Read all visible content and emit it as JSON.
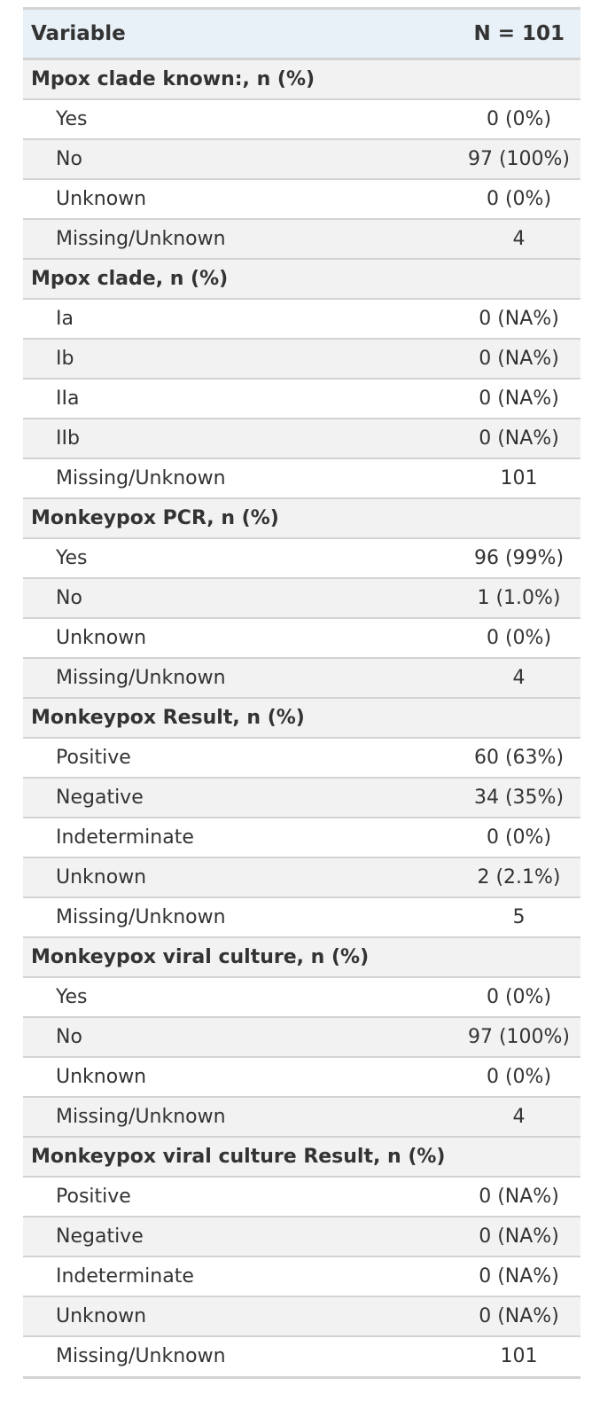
{
  "table": {
    "header": {
      "variable": "Variable",
      "n": "N = 101"
    },
    "groups": [
      {
        "label": "Mpox clade known:, n (%)",
        "rows": [
          {
            "label": "Yes",
            "value": "0 (0%)"
          },
          {
            "label": "No",
            "value": "97 (100%)"
          },
          {
            "label": "Unknown",
            "value": "0 (0%)"
          },
          {
            "label": "Missing/Unknown",
            "value": "4"
          }
        ]
      },
      {
        "label": "Mpox clade, n (%)",
        "rows": [
          {
            "label": "Ia",
            "value": "0 (NA%)"
          },
          {
            "label": "Ib",
            "value": "0 (NA%)"
          },
          {
            "label": "IIa",
            "value": "0 (NA%)"
          },
          {
            "label": "IIb",
            "value": "0 (NA%)"
          },
          {
            "label": "Missing/Unknown",
            "value": "101"
          }
        ]
      },
      {
        "label": "Monkeypox PCR, n (%)",
        "rows": [
          {
            "label": "Yes",
            "value": "96 (99%)"
          },
          {
            "label": "No",
            "value": "1 (1.0%)"
          },
          {
            "label": "Unknown",
            "value": "0 (0%)"
          },
          {
            "label": "Missing/Unknown",
            "value": "4"
          }
        ]
      },
      {
        "label": "Monkeypox Result, n (%)",
        "rows": [
          {
            "label": "Positive",
            "value": "60 (63%)"
          },
          {
            "label": "Negative",
            "value": "34 (35%)"
          },
          {
            "label": "Indeterminate",
            "value": "0 (0%)"
          },
          {
            "label": "Unknown",
            "value": "2 (2.1%)"
          },
          {
            "label": "Missing/Unknown",
            "value": "5"
          }
        ]
      },
      {
        "label": "Monkeypox viral culture, n (%)",
        "rows": [
          {
            "label": "Yes",
            "value": "0 (0%)"
          },
          {
            "label": "No",
            "value": "97 (100%)"
          },
          {
            "label": "Unknown",
            "value": "0 (0%)"
          },
          {
            "label": "Missing/Unknown",
            "value": "4"
          }
        ]
      },
      {
        "label": "Monkeypox viral culture Result, n (%)",
        "rows": [
          {
            "label": "Positive",
            "value": "0 (NA%)"
          },
          {
            "label": "Negative",
            "value": "0 (NA%)"
          },
          {
            "label": "Indeterminate",
            "value": "0 (NA%)"
          },
          {
            "label": "Unknown",
            "value": "0 (NA%)"
          },
          {
            "label": "Missing/Unknown",
            "value": "101"
          }
        ]
      }
    ]
  }
}
